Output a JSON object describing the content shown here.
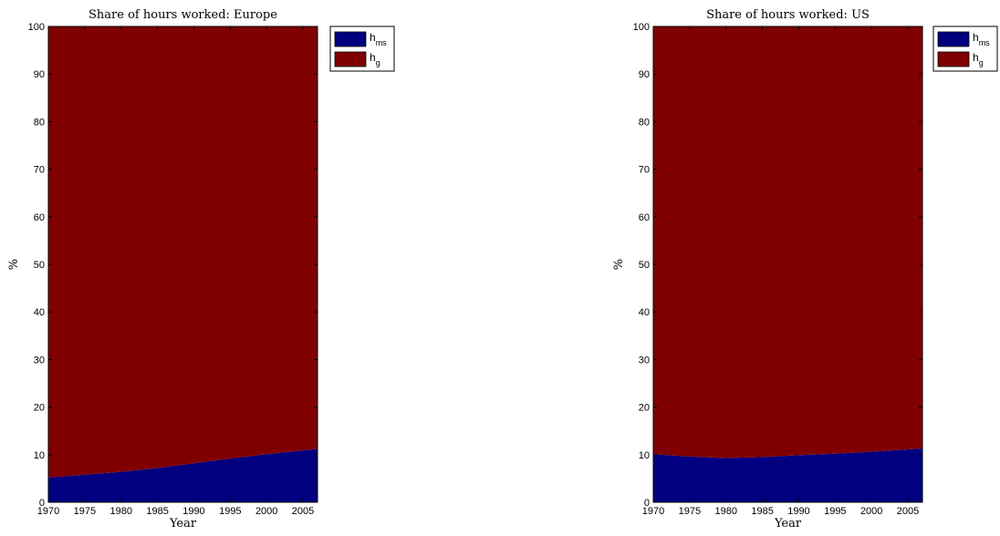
{
  "chart_data": [
    {
      "type": "area",
      "stacked": true,
      "title": "Share of hours worked: Europe",
      "xlabel": "Year",
      "ylabel": "%",
      "xlim": [
        1970,
        2007
      ],
      "ylim": [
        0,
        100
      ],
      "xticks": [
        1970,
        1975,
        1980,
        1985,
        1990,
        1995,
        2000,
        2005
      ],
      "yticks": [
        0,
        10,
        20,
        30,
        40,
        50,
        60,
        70,
        80,
        90,
        100
      ],
      "grid": false,
      "legend_position": "outside-top-right",
      "x": [
        1970,
        1975,
        1980,
        1985,
        1990,
        1995,
        2000,
        2005,
        2007
      ],
      "series": [
        {
          "name": "h",
          "subscript": "ms",
          "color": "#000080",
          "values": [
            5.2,
            5.8,
            6.4,
            7.2,
            8.2,
            9.2,
            10.1,
            10.9,
            11.2
          ]
        },
        {
          "name": "h",
          "subscript": "g",
          "color": "#800000",
          "values": [
            94.8,
            94.2,
            93.6,
            92.8,
            91.8,
            90.8,
            89.9,
            89.1,
            88.8
          ]
        }
      ]
    },
    {
      "type": "area",
      "stacked": true,
      "title": "Share of hours worked: US",
      "xlabel": "Year",
      "ylabel": "%",
      "xlim": [
        1970,
        2007
      ],
      "ylim": [
        0,
        100
      ],
      "xticks": [
        1970,
        1975,
        1980,
        1985,
        1990,
        1995,
        2000,
        2005
      ],
      "yticks": [
        0,
        10,
        20,
        30,
        40,
        50,
        60,
        70,
        80,
        90,
        100
      ],
      "grid": false,
      "legend_position": "outside-top-right",
      "x": [
        1970,
        1975,
        1980,
        1985,
        1990,
        1995,
        2000,
        2005,
        2007
      ],
      "series": [
        {
          "name": "h",
          "subscript": "ms",
          "color": "#000080",
          "values": [
            10.1,
            9.6,
            9.3,
            9.5,
            9.9,
            10.2,
            10.6,
            11.1,
            11.3
          ]
        },
        {
          "name": "h",
          "subscript": "g",
          "color": "#800000",
          "values": [
            89.9,
            90.4,
            90.7,
            90.5,
            90.1,
            89.8,
            89.4,
            88.9,
            88.7
          ]
        }
      ]
    }
  ]
}
